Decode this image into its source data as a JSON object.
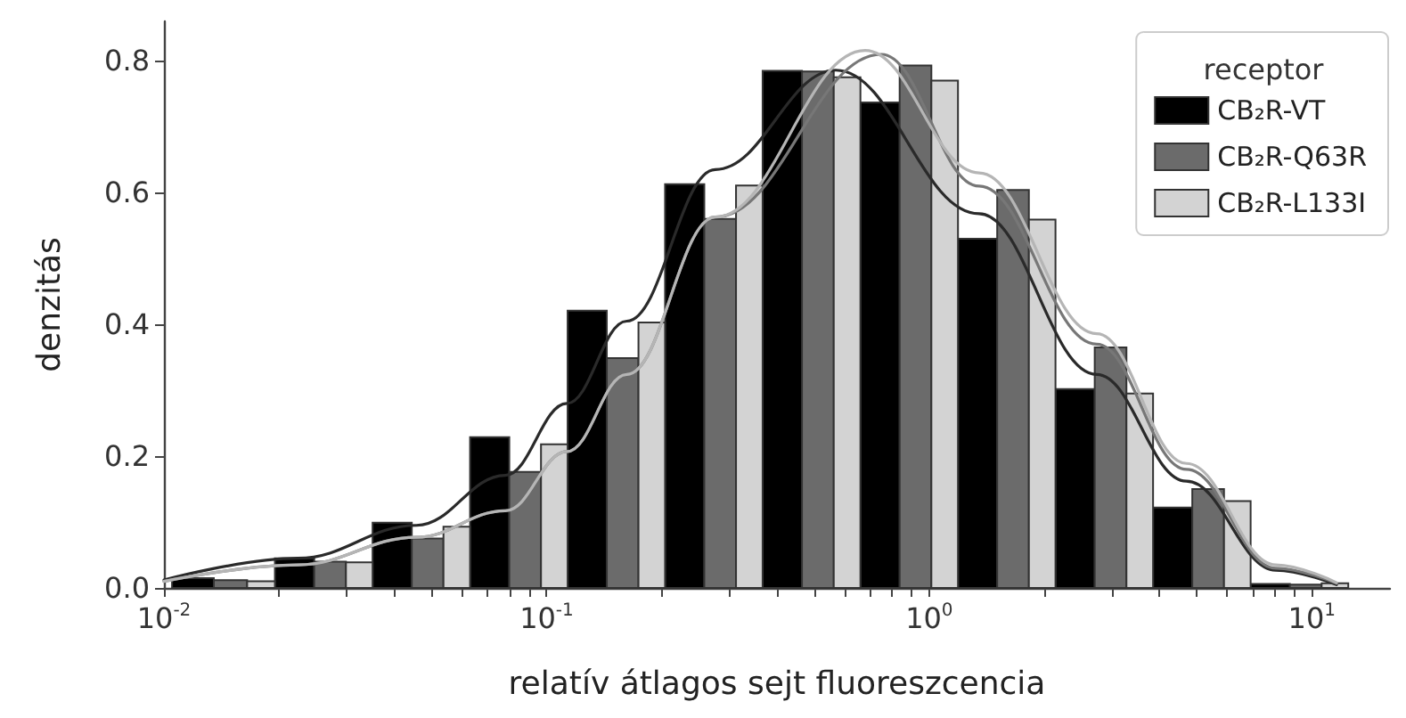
{
  "chart_data": {
    "type": "histogram",
    "xlabel": "relatív átlagos sejt fluoreszcencia",
    "ylabel": "denzitás",
    "legend_title": "receptor",
    "legend": "top right",
    "log": "x",
    "grid": false,
    "bins": [
      0.0105,
      0.0195,
      0.0351,
      0.0631,
      0.1135,
      0.204,
      0.367,
      0.661,
      1.189,
      2.138,
      3.846,
      6.918,
      12.45
    ],
    "series": [
      {
        "name": "CB₂R-VT",
        "color": "#000000",
        "values": [
          0.015,
          0.045,
          0.099,
          0.229,
          0.421,
          0.613,
          0.785,
          0.737,
          0.53,
          0.302,
          0.122,
          0.006
        ]
      },
      {
        "name": "CB₂R-Q63R",
        "color": "#6b6b6b",
        "values": [
          0.012,
          0.04,
          0.075,
          0.176,
          0.349,
          0.56,
          0.784,
          0.793,
          0.604,
          0.365,
          0.15,
          0.005
        ]
      },
      {
        "name": "CB₂R-L133I",
        "color": "#d3d3d3",
        "values": [
          0.01,
          0.039,
          0.093,
          0.218,
          0.403,
          0.611,
          0.775,
          0.77,
          0.559,
          0.295,
          0.132,
          0.007
        ]
      },
      {
        "type": "line",
        "color": "#2a2a2a",
        "x": [
          0.01,
          0.0224,
          0.0457,
          0.078,
          0.113,
          0.162,
          0.276,
          0.57,
          1.35,
          2.74,
          4.7,
          8.05,
          11.6
        ],
        "values": [
          0.012,
          0.045,
          0.095,
          0.171,
          0.28,
          0.405,
          0.635,
          0.786,
          0.568,
          0.324,
          0.162,
          0.027,
          0.005
        ]
      },
      {
        "type": "line",
        "color": "#777777",
        "x": [
          0.01,
          0.0224,
          0.0457,
          0.078,
          0.113,
          0.162,
          0.276,
          0.75,
          1.35,
          2.74,
          4.7,
          8.05,
          11.6
        ],
        "values": [
          0.01,
          0.035,
          0.077,
          0.117,
          0.207,
          0.324,
          0.563,
          0.81,
          0.61,
          0.37,
          0.18,
          0.03,
          0.007
        ]
      },
      {
        "type": "line",
        "color": "#b5b5b5",
        "x": [
          0.01,
          0.0224,
          0.0457,
          0.078,
          0.113,
          0.162,
          0.276,
          0.68,
          1.35,
          2.74,
          4.7,
          8.05,
          11.6
        ],
        "values": [
          0.01,
          0.035,
          0.077,
          0.117,
          0.207,
          0.324,
          0.563,
          0.816,
          0.63,
          0.386,
          0.189,
          0.035,
          0.008
        ]
      }
    ],
    "xlim": [
      0.01,
      16
    ],
    "xticks": [
      {
        "value": 0.01,
        "label": "10$^{-2}$"
      },
      {
        "value": 0.02,
        "label": null
      },
      {
        "value": 0.03,
        "label": null
      },
      {
        "value": 0.04,
        "label": null
      },
      {
        "value": 0.05,
        "label": null
      },
      {
        "value": 0.06,
        "label": null
      },
      {
        "value": 0.07,
        "label": null
      },
      {
        "value": 0.08,
        "label": null
      },
      {
        "value": 0.09,
        "label": null
      },
      {
        "value": 0.1,
        "label": "10$^{-1}$"
      },
      {
        "value": 0.2,
        "label": null
      },
      {
        "value": 0.3,
        "label": null
      },
      {
        "value": 0.4,
        "label": null
      },
      {
        "value": 0.5,
        "label": null
      },
      {
        "value": 0.6,
        "label": null
      },
      {
        "value": 0.7,
        "label": null
      },
      {
        "value": 0.8,
        "label": null
      },
      {
        "value": 0.9,
        "label": null
      },
      {
        "value": 1,
        "label": "10$^{0}$"
      },
      {
        "value": 2,
        "label": null
      },
      {
        "value": 3,
        "label": null
      },
      {
        "value": 4,
        "label": null
      },
      {
        "value": 5,
        "label": null
      },
      {
        "value": 6,
        "label": null
      },
      {
        "value": 7,
        "label": null
      },
      {
        "value": 8,
        "label": null
      },
      {
        "value": 9,
        "label": null
      },
      {
        "value": 10,
        "label": "10$^{1}$"
      }
    ],
    "ylim": [
      0,
      0.86
    ],
    "yticks": [
      {
        "value": 0,
        "label": "0.0"
      },
      {
        "value": 0.2,
        "label": "0.2"
      },
      {
        "value": 0.4,
        "label": "0.4"
      },
      {
        "value": 0.6,
        "label": "0.6"
      },
      {
        "value": 0.8,
        "label": "0.8"
      }
    ]
  }
}
